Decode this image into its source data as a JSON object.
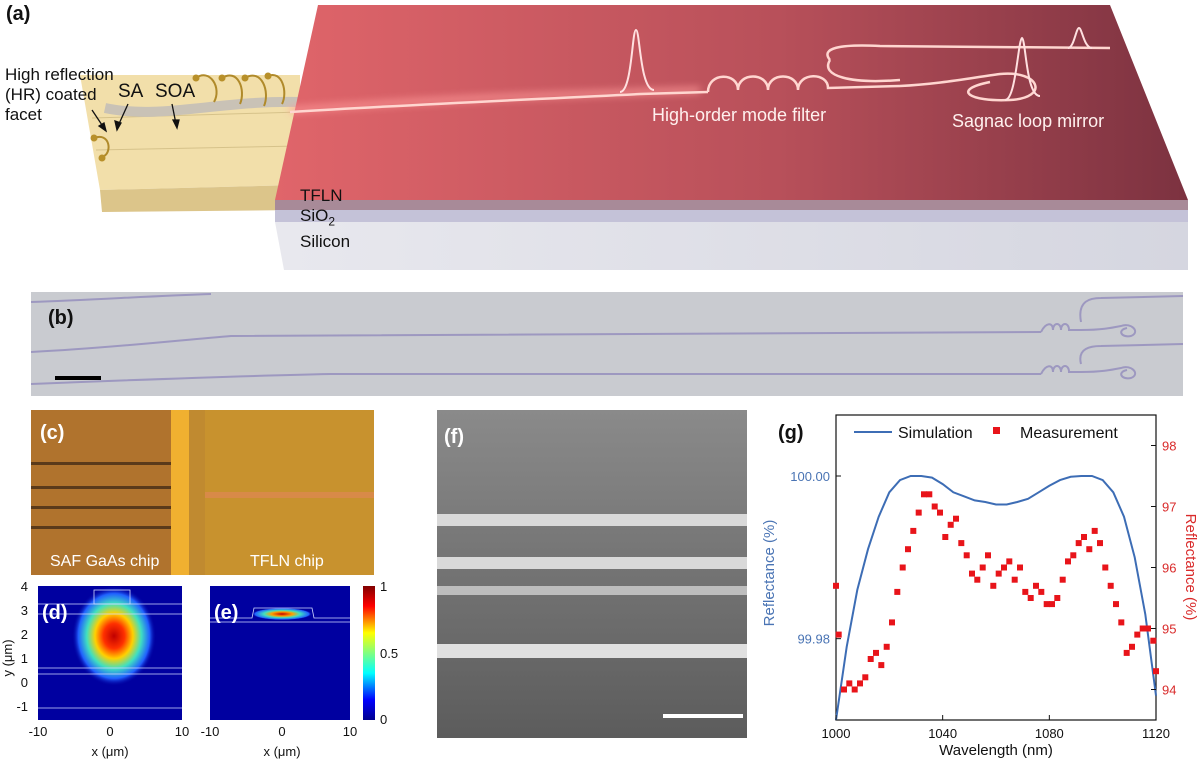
{
  "panels": {
    "a": {
      "tag": "(a)",
      "hr_label_lines": [
        "High reflection",
        "(HR) coated",
        "facet"
      ],
      "sa_label": "SA",
      "soa_label": "SOA",
      "filter_label": "High-order mode filter",
      "sagnac_label": "Sagnac loop mirror",
      "layer_tfln": "TFLN",
      "layer_sio2": "SiO",
      "layer_sio2_sub": "2",
      "layer_silicon": "Silicon"
    },
    "b": {
      "tag": "(b)"
    },
    "c": {
      "tag": "(c)",
      "left_label": "SAF GaAs chip",
      "right_label": "TFLN chip"
    },
    "d": {
      "tag": "(d)",
      "ylabel": "y (μm)",
      "xlabel": "x (μm)",
      "xticks": [
        "-10",
        "0",
        "10"
      ],
      "yticks": [
        "4",
        "3",
        "2",
        "1",
        "0",
        "-1"
      ]
    },
    "e": {
      "tag": "(e)",
      "xlabel": "x (μm)",
      "xticks": [
        "-10",
        "0",
        "10"
      ],
      "colorbar_ticks": [
        "1",
        "0.5",
        "0"
      ]
    },
    "f": {
      "tag": "(f)"
    },
    "g": {
      "tag": "(g)"
    }
  },
  "colors": {
    "simulation": "#3d6db5",
    "measurement": "#e8141a",
    "left_axis": "#4a74b4",
    "right_axis": "#d92a2a",
    "chip_glow": "#ff6a6a"
  },
  "chart_data": {
    "type": "scatter",
    "xlabel": "Wavelength (nm)",
    "ylabel_left": "Reflectance (%)",
    "ylabel_right": "Reflectance (%)",
    "xlim": [
      1000,
      1120
    ],
    "ylim_left": [
      99.97,
      100.0075
    ],
    "ylim_right": [
      93.5,
      98.5
    ],
    "xticks": [
      "1000",
      "1040",
      "1080",
      "1120"
    ],
    "yticks_left": [
      "99.98",
      "100.00"
    ],
    "yticks_right": [
      "94",
      "95",
      "96",
      "97",
      "98"
    ],
    "legend_position": "top",
    "series": [
      {
        "name": "Simulation",
        "axis": "left",
        "style": "line",
        "x": [
          1000,
          1004,
          1008,
          1012,
          1016,
          1020,
          1024,
          1028,
          1032,
          1036,
          1040,
          1044,
          1048,
          1052,
          1056,
          1060,
          1064,
          1068,
          1072,
          1076,
          1080,
          1084,
          1088,
          1092,
          1096,
          1100,
          1104,
          1108,
          1112,
          1116,
          1120
        ],
        "y": [
          99.97,
          99.979,
          99.986,
          99.991,
          99.995,
          99.998,
          99.9995,
          100.0,
          100.0,
          99.9998,
          99.999,
          99.998,
          99.9975,
          99.997,
          99.9968,
          99.9965,
          99.9965,
          99.9968,
          99.9972,
          99.998,
          99.9988,
          99.9995,
          99.9999,
          100.0,
          100.0,
          99.9995,
          99.998,
          99.995,
          99.99,
          99.983,
          99.973
        ]
      },
      {
        "name": "Measurement",
        "axis": "right",
        "style": "markers",
        "x": [
          1000,
          1001,
          1003,
          1005,
          1007,
          1009,
          1011,
          1013,
          1015,
          1017,
          1019,
          1021,
          1023,
          1025,
          1027,
          1029,
          1031,
          1033,
          1035,
          1037,
          1039,
          1041,
          1043,
          1045,
          1047,
          1049,
          1051,
          1053,
          1055,
          1057,
          1059,
          1061,
          1063,
          1065,
          1067,
          1069,
          1071,
          1073,
          1075,
          1077,
          1079,
          1081,
          1083,
          1085,
          1087,
          1089,
          1091,
          1093,
          1095,
          1097,
          1099,
          1101,
          1103,
          1105,
          1107,
          1109,
          1111,
          1113,
          1115,
          1117,
          1119,
          1120
        ],
        "y": [
          95.7,
          94.9,
          94.0,
          94.1,
          94.0,
          94.1,
          94.2,
          94.5,
          94.6,
          94.4,
          94.7,
          95.1,
          95.6,
          96.0,
          96.3,
          96.6,
          96.9,
          97.2,
          97.2,
          97.0,
          96.9,
          96.5,
          96.7,
          96.8,
          96.4,
          96.2,
          95.9,
          95.8,
          96.0,
          96.2,
          95.7,
          95.9,
          96.0,
          96.1,
          95.8,
          96.0,
          95.6,
          95.5,
          95.7,
          95.6,
          95.4,
          95.4,
          95.5,
          95.8,
          96.1,
          96.2,
          96.4,
          96.5,
          96.3,
          96.6,
          96.4,
          96.0,
          95.7,
          95.4,
          95.1,
          94.6,
          94.7,
          94.9,
          95.0,
          95.0,
          94.8,
          94.3
        ]
      }
    ]
  }
}
